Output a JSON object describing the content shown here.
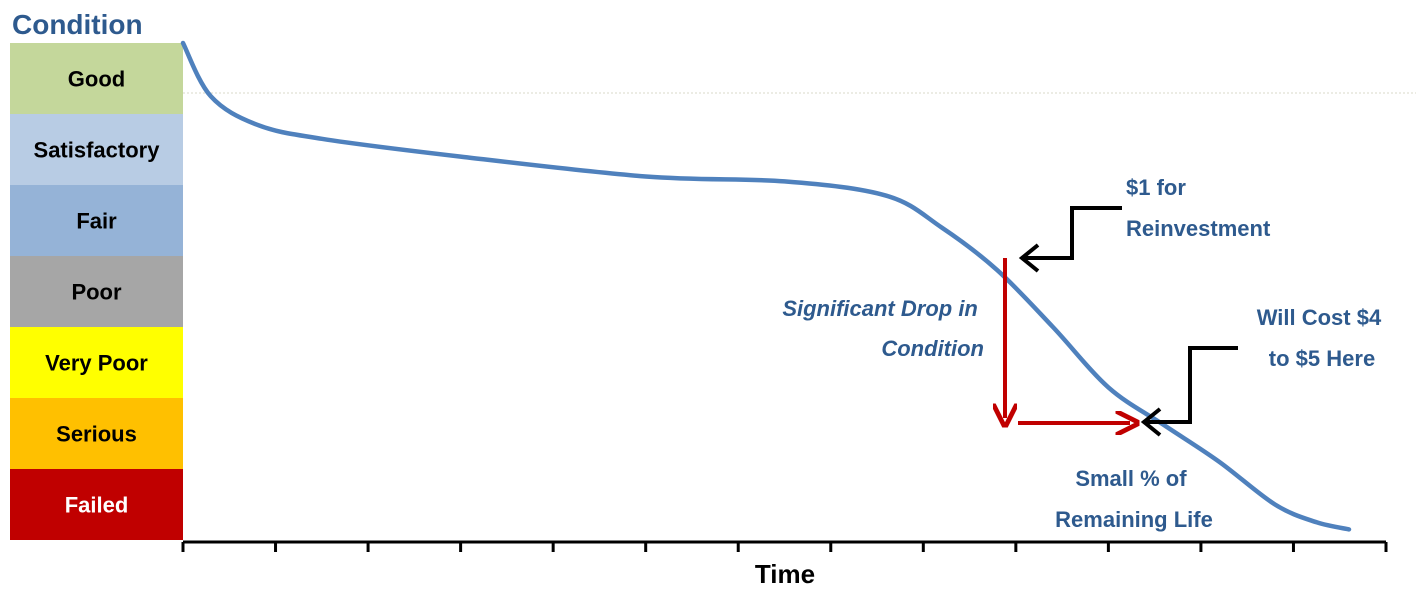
{
  "chart_data": {
    "type": "line",
    "ylabel": "Condition",
    "xlabel": "Time",
    "condition_bands": [
      {
        "label": "Good",
        "color": "#C4D79B",
        "text_color": "#000000"
      },
      {
        "label": "Satisfactory",
        "color": "#B8CCE4",
        "text_color": "#000000"
      },
      {
        "label": "Fair",
        "color": "#95B3D7",
        "text_color": "#000000"
      },
      {
        "label": "Poor",
        "color": "#A6A6A6",
        "text_color": "#000000"
      },
      {
        "label": "Very Poor",
        "color": "#FFFF00",
        "text_color": "#000000"
      },
      {
        "label": "Serious",
        "color": "#FFC000",
        "text_color": "#000000"
      },
      {
        "label": "Failed",
        "color": "#C00000",
        "text_color": "#FFFFFF"
      }
    ],
    "y_scale": "condition level from 7 (top of Good) to 0 (bottom of Failed)",
    "x_ticks": 13,
    "xlim": [
      0,
      13
    ],
    "ylim": [
      0,
      7
    ],
    "series": [
      {
        "color": "#4F81BD",
        "x": [
          0,
          0.3,
          0.8,
          1.5,
          3.0,
          5.0,
          6.5,
          7.6,
          8.2,
          8.8,
          9.4,
          10.0,
          10.6,
          11.2,
          11.8,
          12.25,
          12.6
        ],
        "y": [
          7.0,
          6.25,
          5.85,
          5.65,
          5.4,
          5.12,
          5.05,
          4.85,
          4.4,
          3.8,
          3.0,
          2.15,
          1.62,
          1.1,
          0.5,
          0.25,
          0.15
        ]
      }
    ],
    "annotations": {
      "reinvest": {
        "lines": [
          "$1 for",
          "Reinvestment"
        ],
        "point": [
          9.0,
          4.1
        ]
      },
      "cost": {
        "lines": [
          "Will Cost $4",
          "to $5 Here"
        ],
        "point": [
          10.4,
          1.7
        ]
      },
      "drop": {
        "lines": [
          "Significant Drop in",
          "Condition"
        ]
      },
      "life": {
        "lines": [
          "Small % of",
          "Remaining Life"
        ]
      },
      "colors": {
        "red_arrow": "#C00000",
        "black_arrow": "#000000",
        "text": "#2E5A8E"
      }
    }
  }
}
